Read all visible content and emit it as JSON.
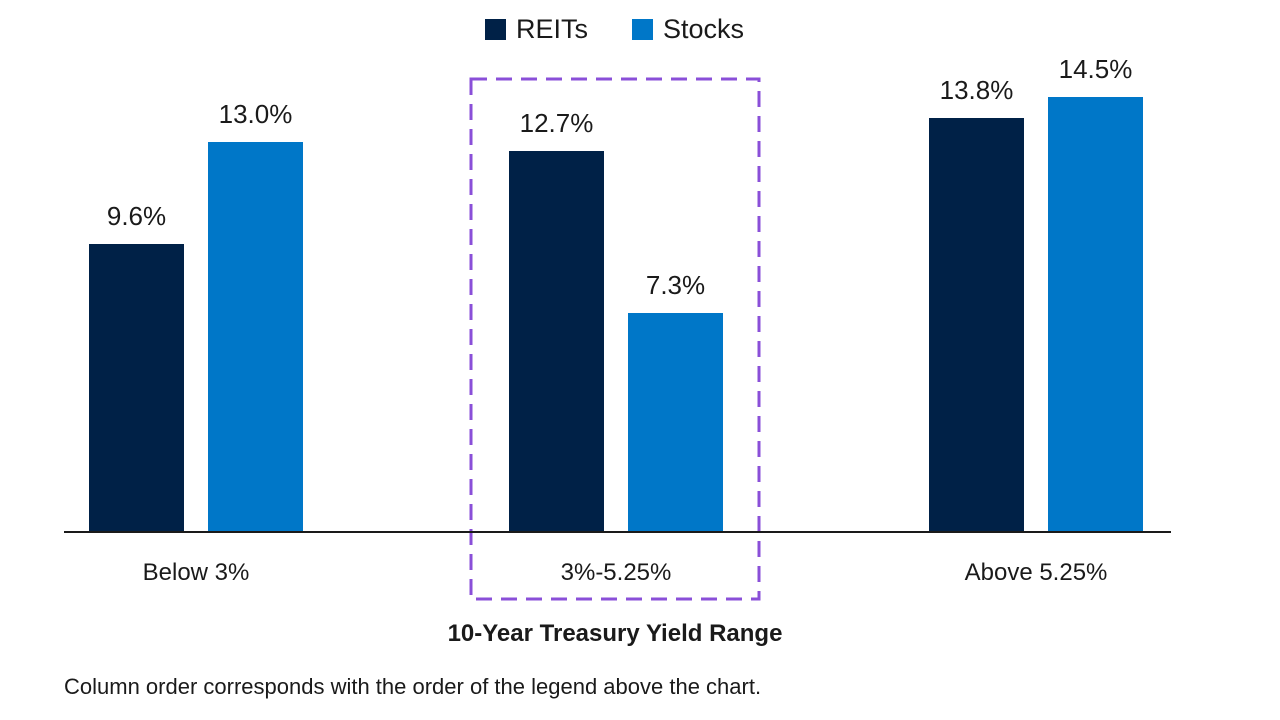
{
  "chart_data": {
    "type": "bar",
    "categories": [
      "Below 3%",
      "3%-5.25%",
      "Above 5.25%"
    ],
    "series": [
      {
        "name": "REITs",
        "values": [
          9.6,
          12.7,
          13.8
        ],
        "labels": [
          "9.6%",
          "12.7%",
          "13.8%"
        ],
        "color": "#002147"
      },
      {
        "name": "Stocks",
        "values": [
          13.0,
          7.3,
          14.5
        ],
        "labels": [
          "13.0%",
          "7.3%",
          "14.5%"
        ],
        "color": "#0077c8"
      }
    ],
    "xlabel": "10-Year Treasury Yield Range",
    "ylabel": "",
    "ylim": [
      0,
      14.5
    ],
    "grid": false,
    "legend_position": "top-center",
    "highlight": {
      "category": "3%-5.25%",
      "style": "dashed box",
      "color": "#8a4fd8"
    }
  },
  "footnote": "Column order corresponds with the order of the legend above the chart."
}
